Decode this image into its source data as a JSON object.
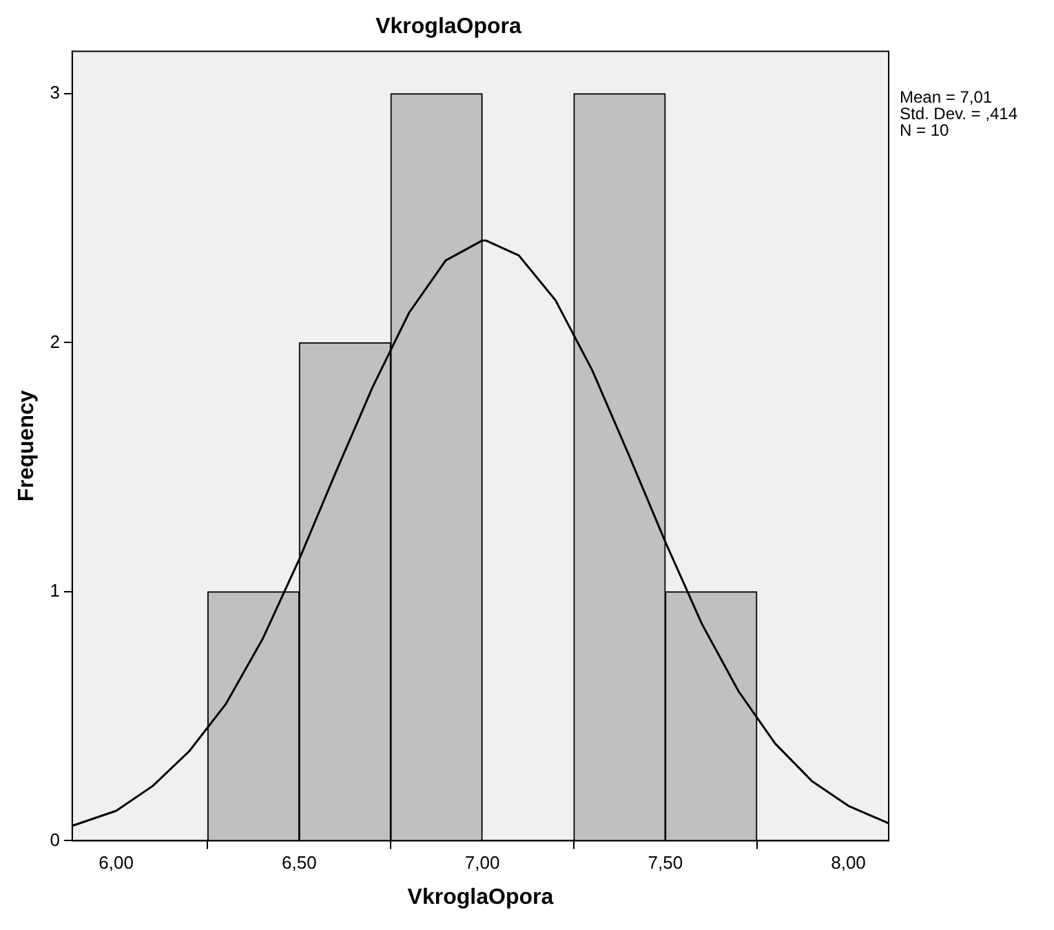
{
  "chart_data": {
    "type": "histogram",
    "title": "VkroglaOpora",
    "xlabel": "VkroglaOpora",
    "ylabel": "Frequency",
    "bins": [
      6.25,
      6.5,
      6.75,
      7.0,
      7.25,
      7.5,
      7.75
    ],
    "values": [
      1,
      2,
      3,
      0,
      3,
      1
    ],
    "color": "#c0c0c0",
    "series": [
      {
        "type": "line",
        "color": "#000000",
        "x": [
          5.88,
          6.0,
          6.1,
          6.2,
          6.3,
          6.4,
          6.5,
          6.6,
          6.7,
          6.8,
          6.9,
          7.0,
          7.01,
          7.1,
          7.2,
          7.3,
          7.4,
          7.5,
          7.6,
          7.7,
          7.8,
          7.9,
          8.0,
          8.11
        ],
        "values": [
          0.06,
          0.12,
          0.22,
          0.36,
          0.55,
          0.81,
          1.13,
          1.48,
          1.82,
          2.12,
          2.33,
          2.41,
          2.41,
          2.35,
          2.17,
          1.89,
          1.55,
          1.2,
          0.87,
          0.6,
          0.39,
          0.24,
          0.14,
          0.07
        ]
      }
    ],
    "xlim": [
      5.88,
      8.11
    ],
    "ylim": [
      0,
      3.17
    ],
    "xticks": [
      {
        "value": 6,
        "label": "6,00"
      },
      {
        "value": 6.5,
        "label": "6,50"
      },
      {
        "value": 7,
        "label": "7,00"
      },
      {
        "value": 7.5,
        "label": "7,50"
      },
      {
        "value": 8,
        "label": "8,00"
      }
    ],
    "yticks": [
      0,
      1,
      2,
      3
    ],
    "annotations": [
      "Mean = 7,01",
      "Std. Dev. = ,414",
      "N = 10"
    ],
    "grid": false,
    "legend": false,
    "marker": "none",
    "line_style": "solid"
  }
}
